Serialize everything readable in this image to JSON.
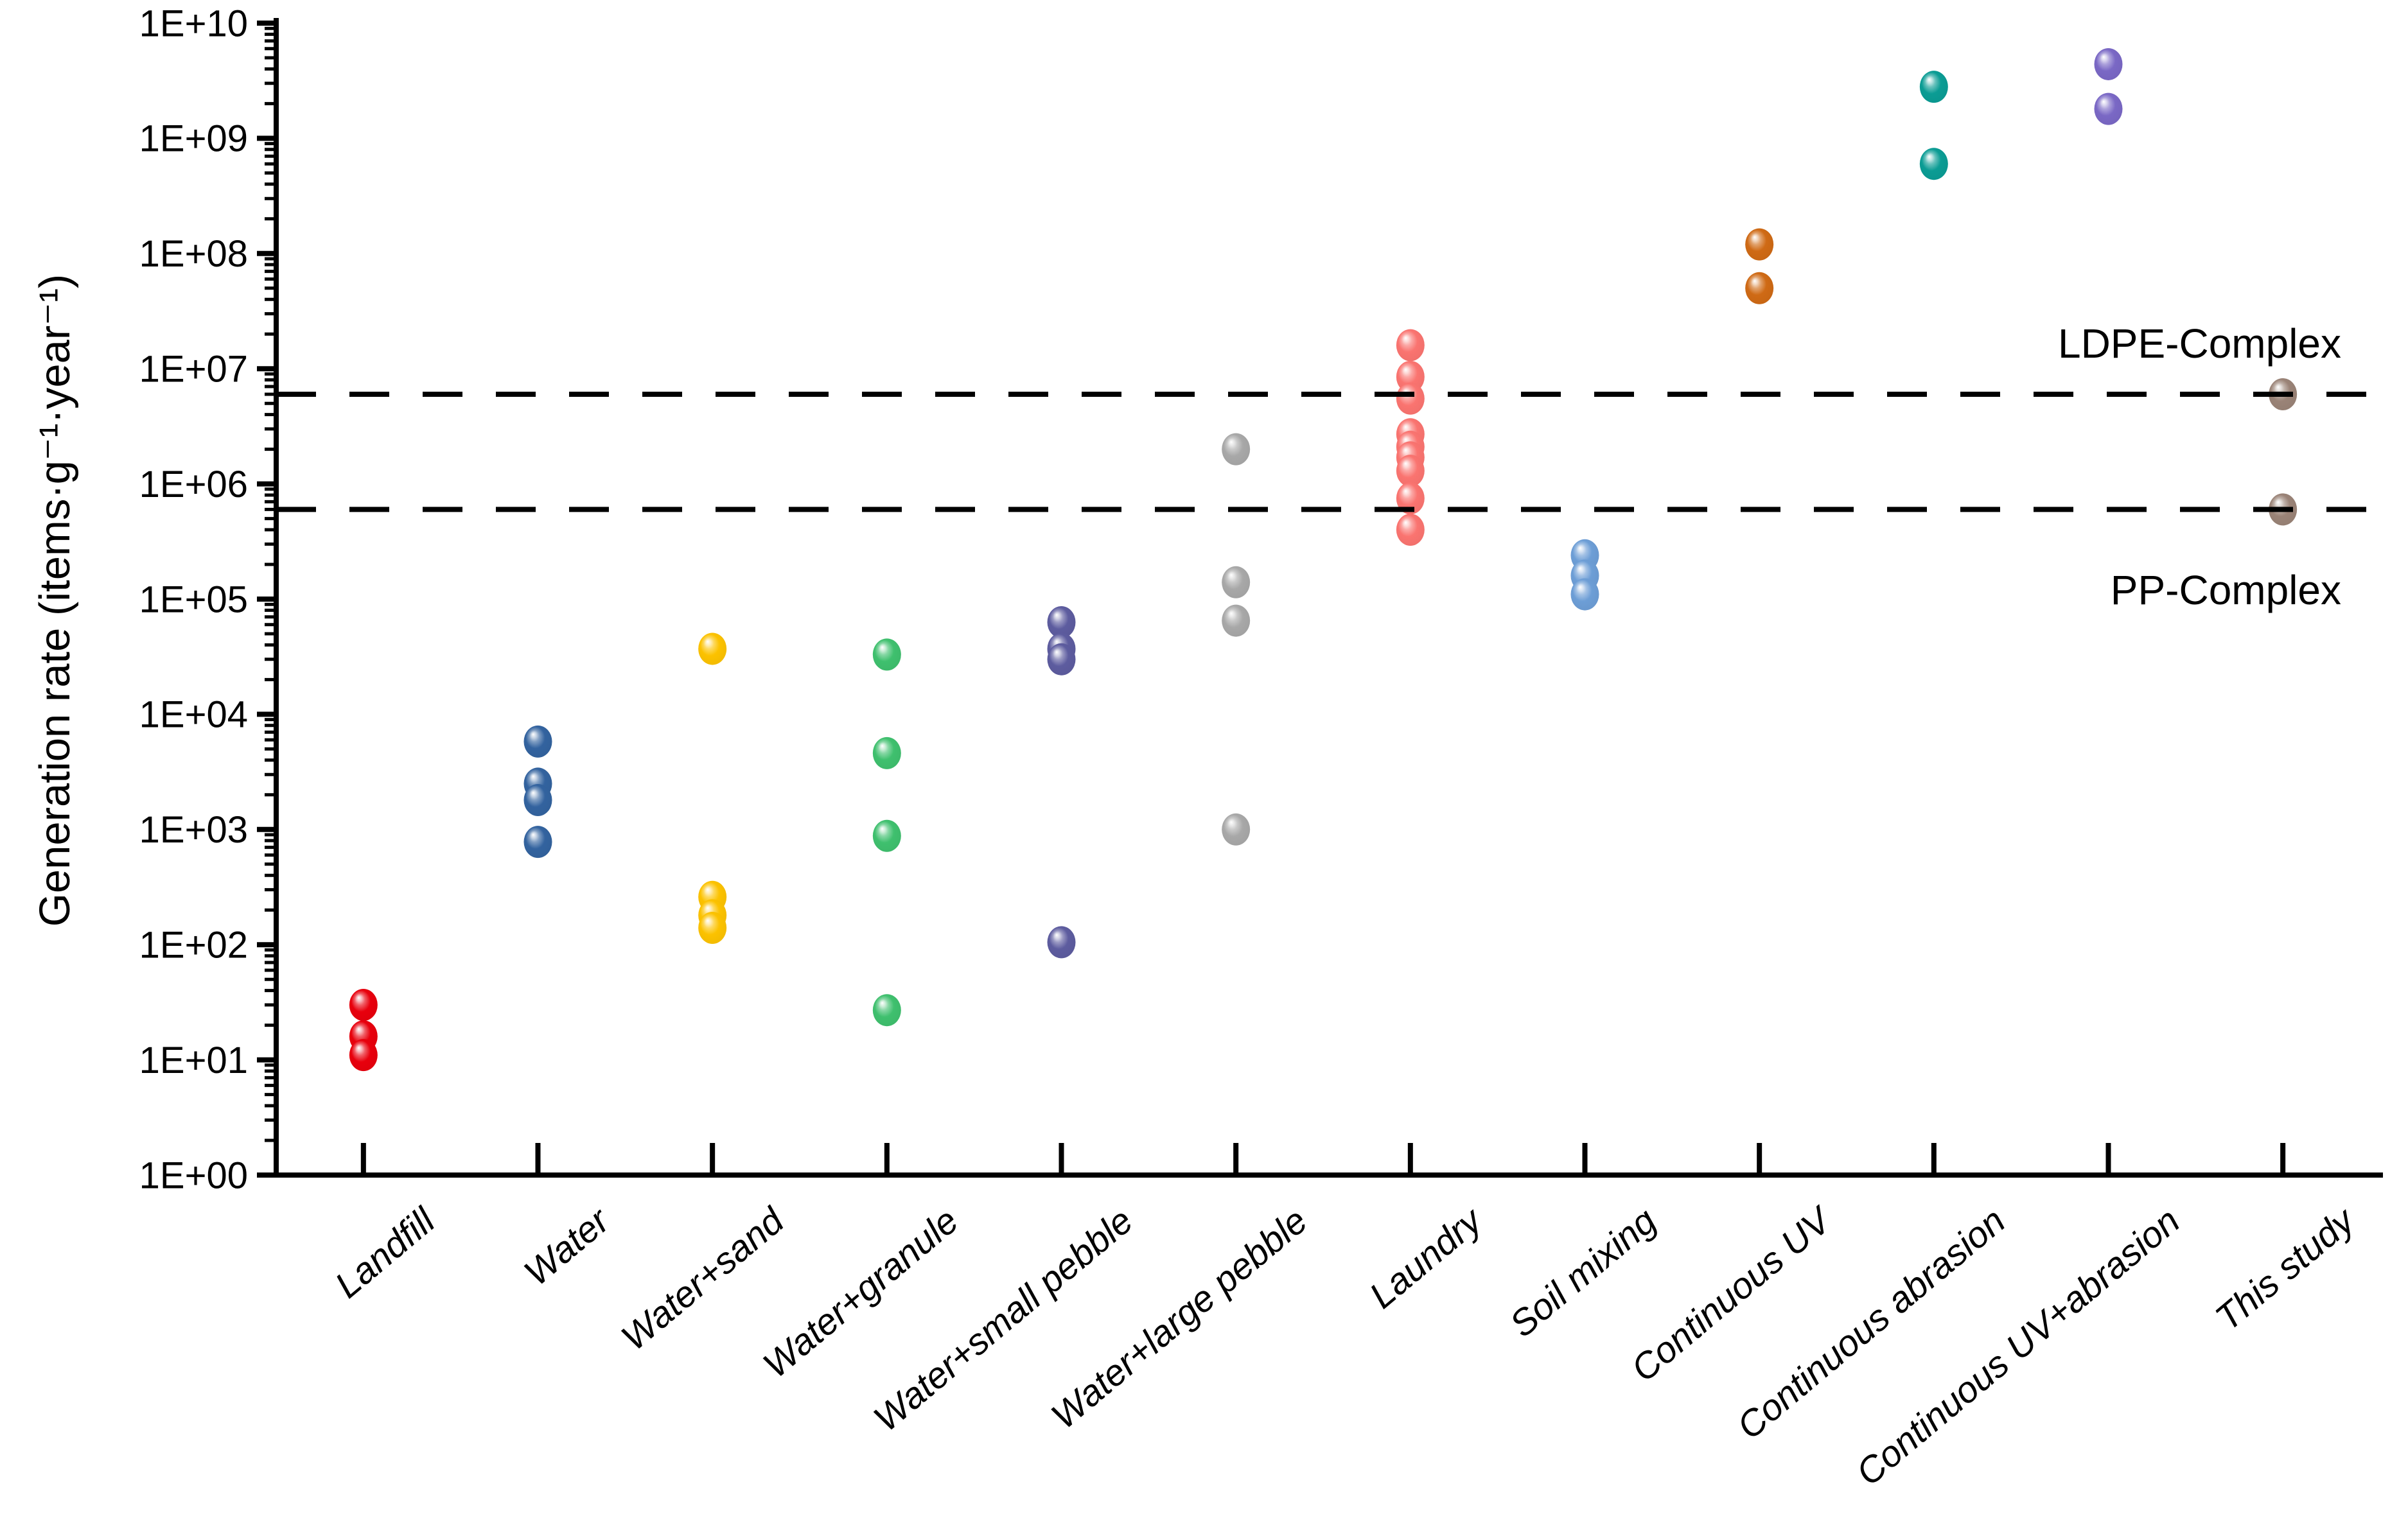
{
  "chart_data": {
    "type": "scatter",
    "title": "",
    "xlabel": "",
    "ylabel": "Generation rate (items·g⁻¹·year⁻¹)",
    "grid": false,
    "legend": "none",
    "yaxis": {
      "scale": "log",
      "min": 1,
      "max": 10000000000,
      "tick_labels": [
        "1E+00",
        "1E+01",
        "1E+02",
        "1E+03",
        "1E+04",
        "1E+05",
        "1E+06",
        "1E+07",
        "1E+08",
        "1E+09",
        "1E+10"
      ]
    },
    "categories": [
      "Landfill",
      "Water",
      "Water+sand",
      "Water+granule",
      "Water+small pebble",
      "Water+large pebble",
      "Laundry",
      "Soil mixing",
      "Continuous UV",
      "Continuous abrasion",
      "Continuous UV+abrasion",
      "This study"
    ],
    "series": [
      {
        "name": "Landfill",
        "color": "#e8000d",
        "values": [
          30,
          16,
          11
        ]
      },
      {
        "name": "Water",
        "color": "#33639f",
        "values": [
          5800,
          2500,
          1800,
          780
        ]
      },
      {
        "name": "Water+sand",
        "color": "#fcc200",
        "values": [
          37000,
          260,
          180,
          140
        ]
      },
      {
        "name": "Water+granule",
        "color": "#3fc06e",
        "values": [
          33000,
          4600,
          880,
          27
        ]
      },
      {
        "name": "Water+small pebble",
        "color": "#5d5c9f",
        "values": [
          63000,
          37000,
          30000,
          105
        ]
      },
      {
        "name": "Water+large pebble",
        "color": "#a8a8a8",
        "values": [
          2000000,
          140000,
          65000,
          1000
        ]
      },
      {
        "name": "Laundry",
        "color": "#fa7470",
        "values": [
          16000000,
          8500000,
          5500000,
          2700000,
          2100000,
          1700000,
          1300000,
          750000,
          400000
        ]
      },
      {
        "name": "Soil mixing",
        "color": "#6d9ed6",
        "values": [
          240000,
          160000,
          110000
        ]
      },
      {
        "name": "Continuous UV",
        "color": "#cf6a15",
        "values": [
          120000000,
          50000000
        ]
      },
      {
        "name": "Continuous abrasion",
        "color": "#0b9c94",
        "values": [
          2800000000,
          600000000
        ]
      },
      {
        "name": "Continuous UV+abrasion",
        "color": "#7a68c5",
        "values": [
          4400000000,
          1800000000
        ]
      },
      {
        "name": "This study",
        "color": "#9a8377",
        "values": [
          6000000,
          600000
        ]
      }
    ],
    "reference_lines": [
      {
        "label": "LDPE-Complex",
        "value": 6000000,
        "style": "dashed",
        "color": "#000000"
      },
      {
        "label": "PP-Complex",
        "value": 600000,
        "style": "dashed",
        "color": "#000000"
      }
    ]
  }
}
